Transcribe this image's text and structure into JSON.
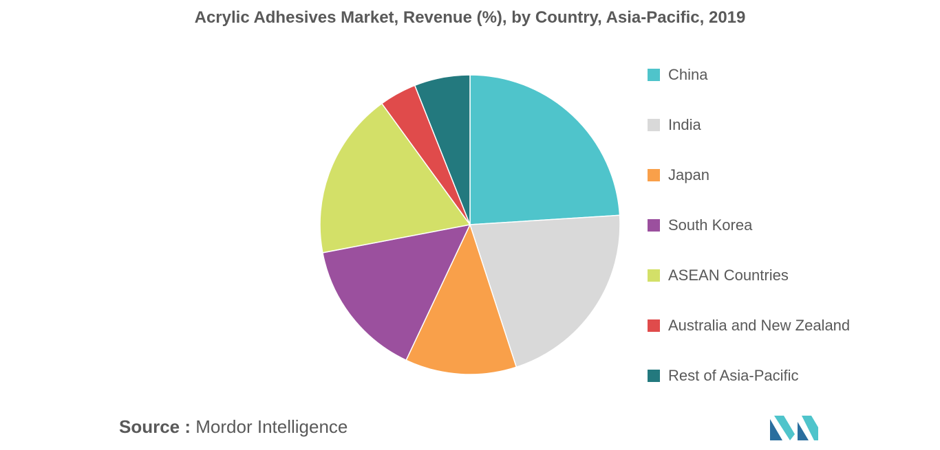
{
  "chart_data": {
    "type": "pie",
    "title": "Acrylic Adhesives Market, Revenue (%), by Country, Asia-Pacific, 2019",
    "categories": [
      "China",
      "India",
      "Japan",
      "South Korea",
      "ASEAN Countries",
      "Australia and New Zealand",
      "Rest of Asia-Pacific"
    ],
    "values": [
      24,
      21,
      12,
      15,
      18,
      4,
      6
    ],
    "unit": "%",
    "colors": [
      "#4fc4cb",
      "#d9d9d9",
      "#f9a04a",
      "#9b509e",
      "#d3e068",
      "#e04b4b",
      "#23797e"
    ],
    "legend_position": "right"
  },
  "source": {
    "label": "Source :",
    "text": "Mordor Intelligence"
  },
  "logo": {
    "icon": "mordor-intelligence-logo",
    "colors": [
      "#2a6e9e",
      "#4fc4cb"
    ]
  }
}
